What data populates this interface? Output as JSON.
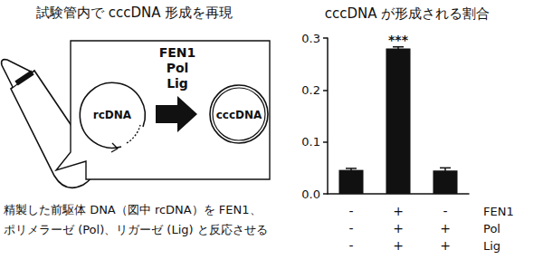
{
  "chart_data": {
    "type": "bar",
    "title": "cccDNA が形成される割合",
    "categories": [
      null,
      null,
      null
    ],
    "values": [
      0.046,
      0.28,
      0.045
    ],
    "errors": [
      0.003,
      0.003,
      0.005
    ],
    "annotations": [
      null,
      "***",
      null
    ],
    "color": "#111111",
    "ylim": [
      0,
      0.3
    ],
    "yticks": [
      {
        "value": 0,
        "label": "0.0"
      },
      0.1,
      0.2,
      0.3
    ],
    "grid": false,
    "conditions": [
      {
        "name": "FEN1",
        "marks": [
          "-",
          "+",
          "-"
        ]
      },
      {
        "name": "Pol",
        "marks": [
          "-",
          "+",
          "+"
        ]
      },
      {
        "name": "Lig",
        "marks": [
          "-",
          "+",
          "+"
        ]
      }
    ]
  },
  "diagram": {
    "title": "試験管内で cccDNA 形成を再現",
    "enzymes": [
      "FEN1",
      "Pol",
      "Lig"
    ],
    "left_label": "rcDNA",
    "right_label": "cccDNA",
    "caption": [
      "精製した前駆体 DNA（図中 rcDNA）を FEN1、",
      "ポリメラーゼ (Pol)、リガーゼ (Lig) と反応させる"
    ]
  }
}
